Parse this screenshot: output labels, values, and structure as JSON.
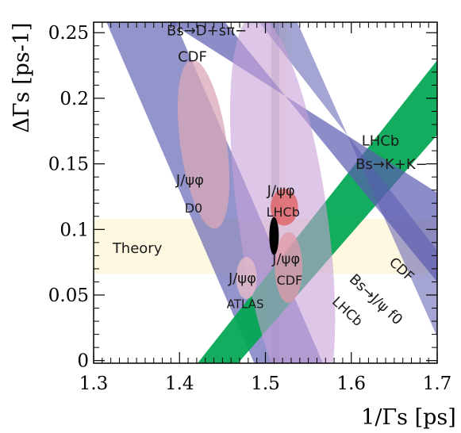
{
  "chart_data": {
    "type": "scatter",
    "title": "",
    "xlabel": "1/Γs [ps]",
    "ylabel": "ΔΓs [ps-1]",
    "xlim": [
      1.3,
      1.7
    ],
    "ylim": [
      -0.002,
      0.258
    ],
    "x_ticks": [
      "1.3",
      "1.4",
      "1.5",
      "1.6",
      "1.7"
    ],
    "y_ticks": [
      "0",
      "0.05",
      "0.1",
      "0.15",
      "0.2",
      "0.25"
    ],
    "grid": false,
    "legend": "none",
    "bands": [
      {
        "key": "bs_dspi_cdf",
        "color": "#5b5bb0",
        "opacity": 0.65,
        "points": [
          [
            1.315,
            0.258
          ],
          [
            1.395,
            0.258
          ],
          [
            1.567,
            -0.002
          ],
          [
            1.487,
            -0.002
          ]
        ]
      },
      {
        "key": "bs_kk_lhcb",
        "color": "#00a651",
        "opacity": 0.92,
        "points": [
          [
            1.421,
            -0.002
          ],
          [
            1.468,
            -0.002
          ],
          [
            1.7,
            0.172
          ],
          [
            1.7,
            0.229
          ]
        ]
      },
      {
        "key": "bs_jpsif0_cdf",
        "color": "#5b5bb0",
        "opacity": 0.7,
        "points": [
          [
            1.388,
            0.258
          ],
          [
            1.453,
            0.258
          ],
          [
            1.7,
            0.06
          ],
          [
            1.7,
            0.128
          ]
        ]
      },
      {
        "key": "bs_jpsif0_lhcb",
        "color": "#5b5bb0",
        "opacity": 0.55,
        "points": [
          [
            1.493,
            0.258
          ],
          [
            1.537,
            0.258
          ],
          [
            1.7,
            0.018
          ],
          [
            1.7,
            0.084
          ]
        ]
      }
    ],
    "theory_band": {
      "color": "#fff5d6",
      "opacity": 0.75,
      "y": [
        0.066,
        0.108
      ]
    },
    "vertical_bands": [
      {
        "key": "lifetime_pale",
        "color": "#fff5d6",
        "opacity": 0.6,
        "x": [
          1.505,
          1.525
        ]
      },
      {
        "key": "lifetime_grey",
        "color": "#c8c8cc",
        "opacity": 0.7,
        "x": [
          1.507,
          1.516
        ]
      }
    ],
    "ellipses": [
      {
        "key": "jpsiphi_d0",
        "cx": 1.428,
        "cy": 0.165,
        "rx": 0.027,
        "ry": 0.065,
        "rot": -8,
        "color": "#d9a8b8",
        "opacity": 0.75
      },
      {
        "key": "d0_large",
        "cx": 1.52,
        "cy": 0.11,
        "rx": 0.052,
        "ry": 0.155,
        "rot": -8,
        "color": "#c8a0d8",
        "opacity": 0.6
      },
      {
        "key": "jpsiphi_atlas",
        "cx": 1.478,
        "cy": 0.063,
        "rx": 0.012,
        "ry": 0.016,
        "rot": 0,
        "color": "#e0b8c8",
        "opacity": 0.85
      },
      {
        "key": "jpsiphi_lhcb",
        "cx": 1.522,
        "cy": 0.117,
        "rx": 0.016,
        "ry": 0.014,
        "rot": 0,
        "color": "#e05a5a",
        "opacity": 0.75
      },
      {
        "key": "jpsiphi_cdf",
        "cx": 1.527,
        "cy": 0.071,
        "rx": 0.016,
        "ry": 0.027,
        "rot": 0,
        "color": "#e09aa8",
        "opacity": 0.75
      },
      {
        "key": "combined",
        "cx": 1.51,
        "cy": 0.095,
        "rx": 0.0055,
        "ry": 0.0145,
        "rot": 0,
        "color": "#000000",
        "opacity": 1
      }
    ],
    "labels": [
      {
        "key": "lbl_dspi",
        "text": "Bs→D+sπ−",
        "x": 1.385,
        "y": 0.248,
        "size": 18,
        "color": "#1a1a1a",
        "anchor": "start"
      },
      {
        "key": "lbl_dspi_exp",
        "text": "CDF",
        "x": 1.398,
        "y": 0.228,
        "size": 18,
        "color": "#1a1a1a",
        "anchor": "start"
      },
      {
        "key": "lbl_lhcb_kk",
        "text": "LHCb",
        "x": 1.612,
        "y": 0.164,
        "size": 18,
        "color": "#ffffff",
        "anchor": "start"
      },
      {
        "key": "lbl_kk",
        "text": "Bs→K+K−",
        "x": 1.605,
        "y": 0.146,
        "size": 18,
        "color": "#ffffff",
        "anchor": "start"
      },
      {
        "key": "lbl_d0_mode",
        "text": "J/ψφ",
        "x": 1.396,
        "y": 0.134,
        "size": 18,
        "color": "#1a1a1a",
        "anchor": "start"
      },
      {
        "key": "lbl_d0",
        "text": "D0",
        "x": 1.406,
        "y": 0.113,
        "size": 16,
        "color": "#1a1a1a",
        "anchor": "start"
      },
      {
        "key": "lbl_lhcb_mode",
        "text": "J/ψφ",
        "x": 1.502,
        "y": 0.126,
        "size": 18,
        "color": "#1a1a1a",
        "anchor": "start"
      },
      {
        "key": "lbl_lhcb",
        "text": "LHCb",
        "x": 1.501,
        "y": 0.11,
        "size": 16,
        "color": "#1a1a1a",
        "anchor": "start"
      },
      {
        "key": "lbl_theory",
        "text": "Theory",
        "x": 1.322,
        "y": 0.082,
        "size": 18,
        "color": "#1a1a1a",
        "anchor": "start"
      },
      {
        "key": "lbl_cdf_mode",
        "text": "J/ψφ",
        "x": 1.508,
        "y": 0.074,
        "size": 18,
        "color": "#1a1a1a",
        "anchor": "start"
      },
      {
        "key": "lbl_cdf",
        "text": "CDF",
        "x": 1.513,
        "y": 0.058,
        "size": 16,
        "color": "#1a1a1a",
        "anchor": "start"
      },
      {
        "key": "lbl_atlas_mode",
        "text": "J/ψφ",
        "x": 1.457,
        "y": 0.059,
        "size": 18,
        "color": "#1a1a1a",
        "anchor": "start"
      },
      {
        "key": "lbl_atlas",
        "text": "ATLAS",
        "x": 1.455,
        "y": 0.04,
        "size": 15,
        "color": "#1a1a1a",
        "anchor": "start"
      },
      {
        "key": "lbl_f0_cdf",
        "text": "CDF",
        "x": 1.655,
        "y": 0.067,
        "size": 17,
        "color": "#1a1a1a",
        "anchor": "middle",
        "rot": 43
      },
      {
        "key": "lbl_f0",
        "text": "Bs→J/ψ f0",
        "x": 1.625,
        "y": 0.044,
        "size": 18,
        "color": "#1a1a1a",
        "anchor": "middle",
        "rot": 43
      },
      {
        "key": "lbl_f0_lhcb",
        "text": "LHCb",
        "x": 1.592,
        "y": 0.035,
        "size": 17,
        "color": "#1a1a1a",
        "anchor": "middle",
        "rot": 43
      }
    ]
  }
}
